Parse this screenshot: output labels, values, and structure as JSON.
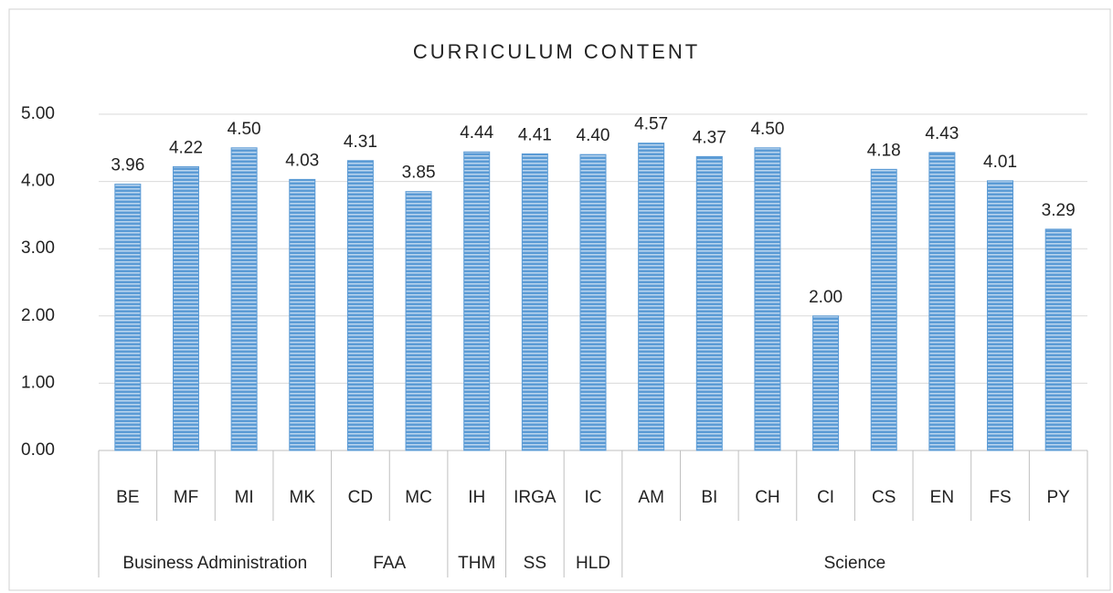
{
  "chart_data": {
    "type": "bar",
    "title": "CURRICULUM CONTENT",
    "groups": [
      {
        "name": "Business Administration",
        "categories": [
          "BE",
          "MF",
          "MI",
          "MK"
        ]
      },
      {
        "name": "FAA",
        "categories": [
          "CD",
          "MC"
        ]
      },
      {
        "name": "THM",
        "categories": [
          "IH"
        ]
      },
      {
        "name": "SS",
        "categories": [
          "IRGA"
        ]
      },
      {
        "name": "HLD",
        "categories": [
          "IC"
        ]
      },
      {
        "name": "Science",
        "categories": [
          "AM",
          "BI",
          "CH",
          "CI",
          "CS",
          "EN",
          "FS",
          "PY"
        ]
      }
    ],
    "values": [
      3.96,
      4.22,
      4.5,
      4.03,
      4.31,
      3.85,
      4.44,
      4.41,
      4.4,
      4.57,
      4.37,
      4.5,
      2.0,
      4.18,
      4.43,
      4.01,
      3.29
    ],
    "value_labels": [
      "3.96",
      "4.22",
      "4.50",
      "4.03",
      "4.31",
      "3.85",
      "4.44",
      "4.41",
      "4.40",
      "4.57",
      "4.37",
      "4.50",
      "2.00",
      "4.18",
      "4.43",
      "4.01",
      "3.29"
    ],
    "color": "#5b9bd5",
    "ylim": [
      0,
      5
    ],
    "yticks": [
      {
        "value": 0,
        "label": "0.00"
      },
      {
        "value": 1,
        "label": "1.00"
      },
      {
        "value": 2,
        "label": "2.00"
      },
      {
        "value": 3,
        "label": "3.00"
      },
      {
        "value": 4,
        "label": "4.00"
      },
      {
        "value": 5,
        "label": "5.00"
      }
    ],
    "grid": true
  }
}
